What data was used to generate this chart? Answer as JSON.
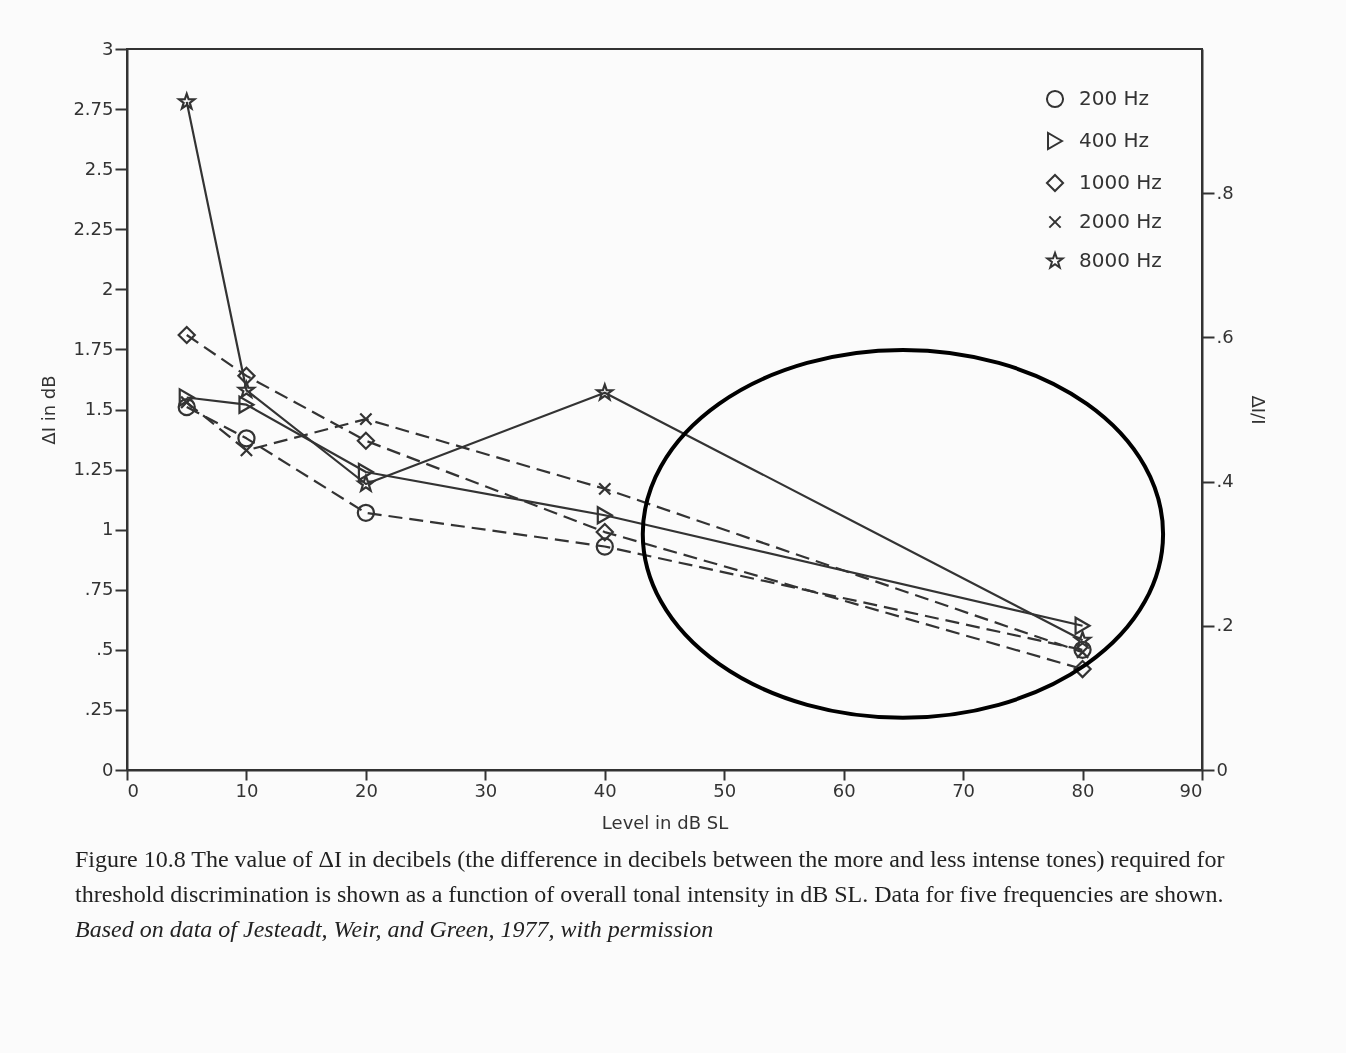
{
  "chart_data": {
    "type": "line",
    "xlabel": "Level in dB SL",
    "ylabel": "ΔI in dB",
    "y2label": "ΔI/I",
    "x": [
      5,
      10,
      20,
      40,
      80
    ],
    "series": [
      {
        "name": "200 Hz",
        "color": "#333333",
        "marker": "circle",
        "line_style": "dashed",
        "values": [
          1.51,
          1.38,
          1.07,
          0.93,
          0.5
        ]
      },
      {
        "name": "400 Hz",
        "color": "#333333",
        "marker": "triangle",
        "line_style": "solid",
        "values": [
          1.55,
          1.52,
          1.24,
          1.06,
          0.6
        ]
      },
      {
        "name": "1000 Hz",
        "color": "#333333",
        "marker": "diamond",
        "line_style": "dashed",
        "values": [
          1.81,
          1.64,
          1.37,
          0.99,
          0.42
        ]
      },
      {
        "name": "2000 Hz",
        "color": "#333333",
        "marker": "cross",
        "line_style": "dashed",
        "values": [
          1.53,
          1.33,
          1.46,
          1.17,
          0.49
        ]
      },
      {
        "name": "8000 Hz",
        "color": "#333333",
        "marker": "star",
        "line_style": "solid",
        "values": [
          2.78,
          1.58,
          1.19,
          1.57,
          0.54
        ]
      }
    ],
    "xlim": [
      0,
      90
    ],
    "xticks": [
      0,
      10,
      20,
      30,
      40,
      50,
      60,
      70,
      80,
      90
    ],
    "ylim": [
      0,
      3
    ],
    "yticks": [
      0,
      {
        "value": 0.25,
        "label": ".25"
      },
      {
        "value": 0.5,
        "label": ".5"
      },
      {
        "value": 0.75,
        "label": ".75"
      },
      1,
      1.25,
      1.5,
      1.75,
      2,
      2.25,
      2.5,
      2.75,
      3
    ],
    "y2lim": [
      0,
      1
    ],
    "y2ticks": [
      0,
      {
        "value": 0.2,
        "label": ".2"
      },
      {
        "value": 0.4,
        "label": ".4"
      },
      {
        "value": 0.6,
        "label": ".6"
      },
      {
        "value": 0.8,
        "label": ".8"
      }
    ],
    "grid": false,
    "legend": "top right",
    "annotations": [
      "Figure 10.8 The value of ΔI in decibels (the difference in decibels between the more and less intense tones) required for threshold discrimination is shown as a function of overall tonal intensity in dB SL. Data for five frequencies are shown.",
      "Based on data of Jesteadt, Weir, and Green, 1977, with permission"
    ]
  }
}
